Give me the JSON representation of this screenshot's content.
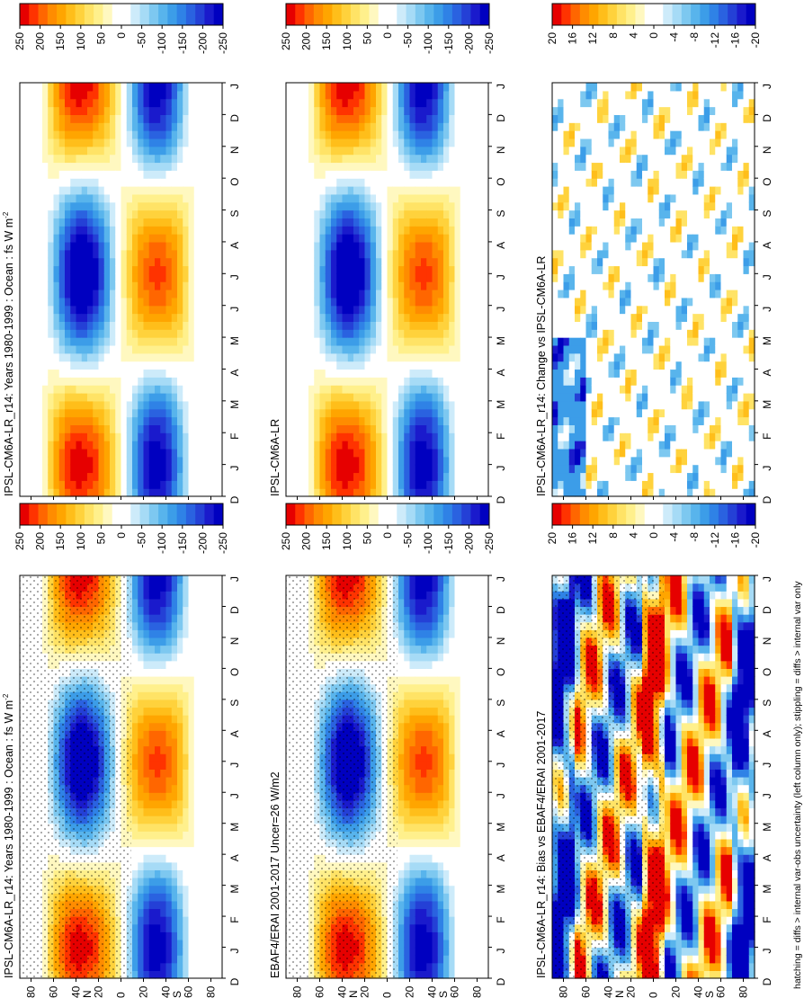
{
  "footnote": "hatching = diffs > internal var-obs uncertainty (left column only); stippling = diffs > internal var only",
  "months": [
    "D",
    "J",
    "F",
    "M",
    "A",
    "M",
    "J",
    "J",
    "A",
    "S",
    "O",
    "N",
    "D",
    "J"
  ],
  "lat_labels": [
    "80",
    "60",
    "40",
    "N",
    "20",
    "0",
    "20",
    "40",
    "S",
    "60",
    "80"
  ],
  "lat_values": [
    80,
    60,
    40,
    20,
    0,
    -20,
    -40,
    -60,
    -80
  ],
  "chart_data": [
    {
      "type": "heatmap",
      "title": "IPSL-CM6A-LR_r14: Years 1980-1999 : Ocean : fs W m",
      "title_sup": "-2",
      "x": [
        "D",
        "J",
        "F",
        "M",
        "A",
        "M",
        "J",
        "J",
        "A",
        "S",
        "O",
        "N",
        "D",
        "J"
      ],
      "y": [
        80,
        60,
        40,
        20,
        0,
        -20,
        -40,
        -60,
        -80
      ],
      "colorbar": {
        "ticks": [
          "250",
          "200",
          "150",
          "100",
          "50",
          "0",
          "-50",
          "-100",
          "-150",
          "-200",
          "-250"
        ],
        "values": [
          250,
          200,
          150,
          100,
          50,
          0,
          -50,
          -100,
          -150,
          -200,
          -250
        ]
      },
      "hatched": true,
      "pattern": "seasonal"
    },
    {
      "type": "heatmap",
      "title": "IPSL-CM6A-LR_r14: Years 1980-1999 : Ocean : fs W m",
      "title_sup": "-2",
      "x": [
        "D",
        "J",
        "F",
        "M",
        "A",
        "M",
        "J",
        "J",
        "A",
        "S",
        "O",
        "N",
        "D",
        "J"
      ],
      "y": [
        80,
        60,
        40,
        20,
        0,
        -20,
        -40,
        -60,
        -80
      ],
      "colorbar": {
        "ticks": [
          "250",
          "200",
          "150",
          "100",
          "50",
          "0",
          "-50",
          "-100",
          "-150",
          "-200",
          "-250"
        ],
        "values": [
          250,
          200,
          150,
          100,
          50,
          0,
          -50,
          -100,
          -150,
          -200,
          -250
        ]
      },
      "hatched": false,
      "pattern": "seasonal"
    },
    {
      "type": "heatmap",
      "title": "EBAF4/ERAI 2001-2017 Uncer=26 W/m2",
      "title_sup": "",
      "x": [
        "D",
        "J",
        "F",
        "M",
        "A",
        "M",
        "J",
        "J",
        "A",
        "S",
        "O",
        "N",
        "D",
        "J"
      ],
      "y": [
        80,
        60,
        40,
        20,
        0,
        -20,
        -40,
        -60,
        -80
      ],
      "colorbar": {
        "ticks": [
          "250",
          "200",
          "150",
          "100",
          "50",
          "0",
          "-50",
          "-100",
          "-150",
          "-200",
          "-250"
        ],
        "values": [
          250,
          200,
          150,
          100,
          50,
          0,
          -50,
          -100,
          -150,
          -200,
          -250
        ]
      },
      "hatched": true,
      "pattern": "seasonal"
    },
    {
      "type": "heatmap",
      "title": "IPSL-CM6A-LR",
      "title_sup": "",
      "x": [
        "D",
        "J",
        "F",
        "M",
        "A",
        "M",
        "J",
        "J",
        "A",
        "S",
        "O",
        "N",
        "D",
        "J"
      ],
      "y": [
        80,
        60,
        40,
        20,
        0,
        -20,
        -40,
        -60,
        -80
      ],
      "colorbar": {
        "ticks": [
          "250",
          "200",
          "150",
          "100",
          "50",
          "0",
          "-50",
          "-100",
          "-150",
          "-200",
          "-250"
        ],
        "values": [
          250,
          200,
          150,
          100,
          50,
          0,
          -50,
          -100,
          -150,
          -200,
          -250
        ]
      },
      "hatched": false,
      "pattern": "seasonal"
    },
    {
      "type": "heatmap",
      "title": "IPSL-CM6A-LR_r14: Bias vs EBAF4/ERAI 2001-2017",
      "title_sup": "",
      "x": [
        "D",
        "J",
        "F",
        "M",
        "A",
        "M",
        "J",
        "J",
        "A",
        "S",
        "O",
        "N",
        "D",
        "J"
      ],
      "y": [
        80,
        60,
        40,
        20,
        0,
        -20,
        -40,
        -60,
        -80
      ],
      "colorbar": {
        "ticks": [
          "20",
          "16",
          "12",
          "8",
          "4",
          "0",
          "-4",
          "-8",
          "-12",
          "-16",
          "-20"
        ],
        "values": [
          20,
          16,
          12,
          8,
          4,
          0,
          -4,
          -8,
          -12,
          -16,
          -20
        ]
      },
      "hatched": true,
      "pattern": "bias"
    },
    {
      "type": "heatmap",
      "title": "IPSL-CM6A-LR_r14: Change vs IPSL-CM6A-LR",
      "title_sup": "",
      "x": [
        "D",
        "J",
        "F",
        "M",
        "A",
        "M",
        "J",
        "J",
        "A",
        "S",
        "O",
        "N",
        "D",
        "J"
      ],
      "y": [
        80,
        60,
        40,
        20,
        0,
        -20,
        -40,
        -60,
        -80
      ],
      "colorbar": {
        "ticks": [
          "20",
          "16",
          "12",
          "8",
          "4",
          "0",
          "-4",
          "-8",
          "-12",
          "-16",
          "-20"
        ],
        "values": [
          20,
          16,
          12,
          8,
          4,
          0,
          -4,
          -8,
          -12,
          -16,
          -20
        ]
      },
      "hatched": false,
      "pattern": "change"
    }
  ],
  "colors": {
    "scale": [
      "#e60000",
      "#ff3300",
      "#ff6600",
      "#ff8c00",
      "#ffa500",
      "#ffbe1a",
      "#ffd23c",
      "#ffe366",
      "#fff08c",
      "#fff8c0",
      "#ffffff",
      "#ffffff",
      "#cdebfa",
      "#a6dbf6",
      "#7dc8f0",
      "#58b4ec",
      "#3c9de8",
      "#2f82e6",
      "#2a62e0",
      "#2440d6",
      "#1a1acc",
      "#0000c0"
    ]
  }
}
